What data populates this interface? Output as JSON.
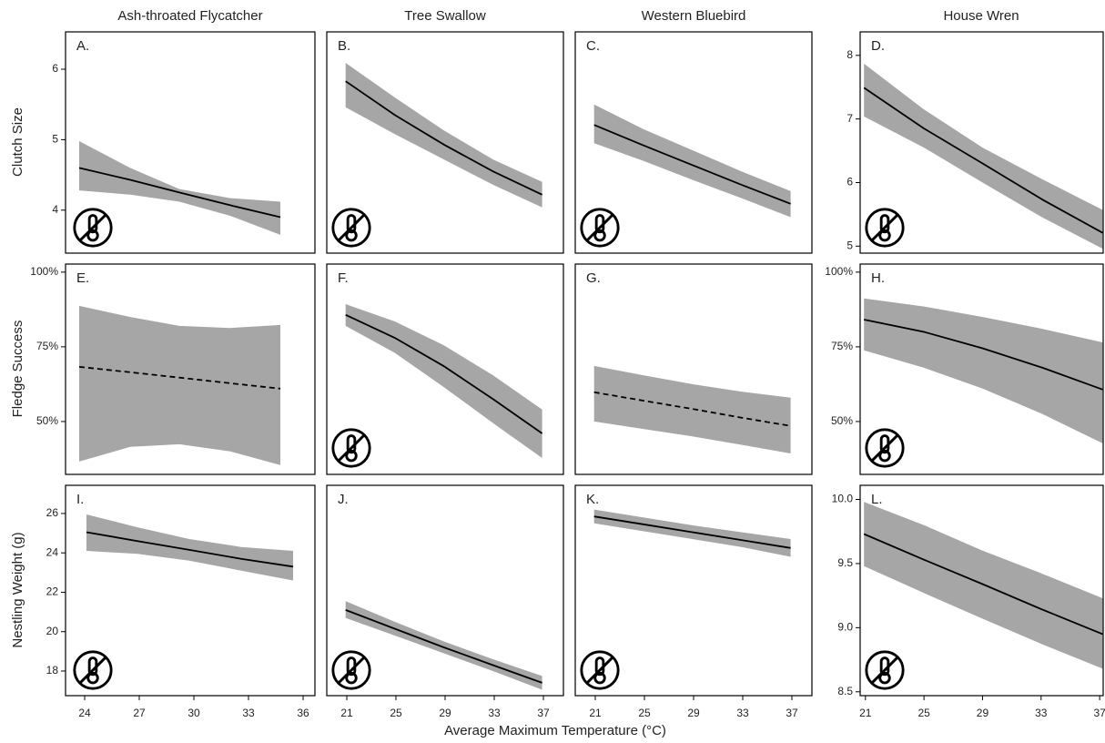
{
  "column_titles": [
    "Ash-throated Flycatcher",
    "Tree Swallow",
    "Western Bluebird",
    "House Wren"
  ],
  "row_labels": [
    "Clutch Size",
    "Fledge Success",
    "Nestling Weight (g)"
  ],
  "xlabel": "Average Maximum Temperature (°C)",
  "chart_data": [
    {
      "type": "line",
      "label": "A.",
      "color": "#000000",
      "band_color": "#a6a6a6",
      "dashed": false,
      "x": [
        23.7,
        26.5,
        29.2,
        32,
        34.75
      ],
      "values": [
        4.6,
        4.43,
        4.25,
        4.07,
        3.9
      ],
      "upper": [
        4.98,
        4.6,
        4.3,
        4.17,
        4.12
      ],
      "lower": [
        4.28,
        4.22,
        4.12,
        3.92,
        3.65
      ],
      "xlim": [
        22.95,
        36.65
      ],
      "ylim": [
        3.39,
        6.53
      ],
      "yticks": [
        4,
        5,
        6
      ]
    },
    {
      "type": "line",
      "label": "B.",
      "color": "#000000",
      "band_color": "#a6a6a6",
      "dashed": false,
      "x": [
        20.9,
        24.9,
        28.9,
        32.9,
        36.9
      ],
      "values": [
        5.83,
        5.35,
        4.93,
        4.55,
        4.22
      ],
      "upper": [
        6.09,
        5.6,
        5.13,
        4.72,
        4.4
      ],
      "lower": [
        5.46,
        5.08,
        4.72,
        4.36,
        4.04
      ],
      "xlim": [
        19.37,
        38.63
      ],
      "ylim": [
        3.39,
        6.53
      ]
    },
    {
      "type": "line",
      "label": "C.",
      "color": "#000000",
      "band_color": "#a6a6a6",
      "dashed": false,
      "x": [
        20.9,
        24.9,
        28.9,
        32.9,
        36.9
      ],
      "values": [
        5.21,
        4.92,
        4.64,
        4.36,
        4.09
      ],
      "upper": [
        5.5,
        5.15,
        4.85,
        4.55,
        4.27
      ],
      "lower": [
        4.95,
        4.7,
        4.43,
        4.17,
        3.9
      ],
      "xlim": [
        19.37,
        38.63
      ],
      "ylim": [
        3.39,
        6.53
      ]
    },
    {
      "type": "line",
      "label": "D.",
      "color": "#000000",
      "band_color": "#a6a6a6",
      "dashed": false,
      "x": [
        20.9,
        25,
        29,
        33.1,
        37.2
      ],
      "values": [
        7.49,
        6.85,
        6.3,
        5.73,
        5.21
      ],
      "upper": [
        7.87,
        7.15,
        6.55,
        6.05,
        5.57
      ],
      "lower": [
        7.04,
        6.55,
        6.0,
        5.45,
        4.96
      ],
      "xlim": [
        20.64,
        37.24
      ],
      "ylim": [
        4.89,
        8.37
      ],
      "yticks": [
        5,
        6,
        7,
        8
      ]
    },
    {
      "type": "line",
      "label": "E.",
      "color": "#000000",
      "band_color": "#a6a6a6",
      "dashed": true,
      "x": [
        23.7,
        26.5,
        29.2,
        32,
        34.75
      ],
      "values": [
        68.3,
        66.5,
        64.7,
        62.8,
        61
      ],
      "upper": [
        88.7,
        85,
        82,
        81.3,
        82.3
      ],
      "lower": [
        36.6,
        41.5,
        42.4,
        40,
        35.4
      ],
      "xlim": [
        22.95,
        36.65
      ],
      "ylim": [
        32.3,
        102.7
      ],
      "yticks": [
        {
          "value": 50,
          "label": "50%"
        },
        {
          "value": 75,
          "label": "75%"
        },
        {
          "value": 100,
          "label": "100%"
        }
      ]
    },
    {
      "type": "line",
      "label": "F.",
      "color": "#000000",
      "band_color": "#a6a6a6",
      "dashed": false,
      "x": [
        20.9,
        24.9,
        28.9,
        32.9,
        36.9
      ],
      "values": [
        85.7,
        78,
        68.5,
        57.5,
        46
      ],
      "upper": [
        89.3,
        83.5,
        75.5,
        65.5,
        54
      ],
      "lower": [
        82,
        73,
        61.5,
        49.5,
        37.8
      ],
      "xlim": [
        19.37,
        38.63
      ],
      "ylim": [
        32.3,
        102.7
      ]
    },
    {
      "type": "line",
      "label": "G.",
      "color": "#000000",
      "band_color": "#a6a6a6",
      "dashed": true,
      "x": [
        20.9,
        24.9,
        28.9,
        32.9,
        36.9
      ],
      "values": [
        59.8,
        57,
        54.2,
        51.3,
        48.5
      ],
      "upper": [
        68.6,
        65.5,
        62.5,
        60,
        58
      ],
      "lower": [
        50,
        47.5,
        45,
        42.2,
        39.3
      ],
      "xlim": [
        19.37,
        38.63
      ],
      "ylim": [
        32.3,
        102.7
      ]
    },
    {
      "type": "line",
      "label": "H.",
      "color": "#000000",
      "band_color": "#a6a6a6",
      "dashed": false,
      "x": [
        20.9,
        25,
        29,
        33.1,
        37.2
      ],
      "values": [
        84.1,
        80,
        74.5,
        68,
        60.7
      ],
      "upper": [
        91.2,
        88.5,
        85,
        81,
        76.5
      ],
      "lower": [
        73.8,
        68,
        61,
        52.5,
        42.7
      ],
      "xlim": [
        20.64,
        37.24
      ],
      "ylim": [
        32.3,
        102.7
      ],
      "yticks": [
        {
          "value": 50,
          "label": "50%"
        },
        {
          "value": 75,
          "label": "75%"
        },
        {
          "value": 100,
          "label": "100%"
        }
      ]
    },
    {
      "type": "line",
      "label": "I.",
      "color": "#000000",
      "band_color": "#a6a6a6",
      "dashed": false,
      "x": [
        24.1,
        26.9,
        29.75,
        32.6,
        35.45
      ],
      "values": [
        25.05,
        24.6,
        24.15,
        23.7,
        23.3
      ],
      "upper": [
        25.95,
        25.3,
        24.7,
        24.3,
        24.1
      ],
      "lower": [
        24.1,
        23.95,
        23.6,
        23.1,
        22.6
      ],
      "xlim": [
        22.95,
        36.65
      ],
      "ylim": [
        16.75,
        27.43
      ],
      "yticks": [
        18,
        20,
        22,
        24,
        26
      ],
      "xticks": [
        24,
        27,
        30,
        33,
        36
      ]
    },
    {
      "type": "line",
      "label": "J.",
      "color": "#000000",
      "band_color": "#a6a6a6",
      "dashed": false,
      "x": [
        20.9,
        24.9,
        28.9,
        32.9,
        36.9
      ],
      "values": [
        21.1,
        20.15,
        19.2,
        18.3,
        17.4
      ],
      "upper": [
        21.55,
        20.5,
        19.5,
        18.6,
        17.75
      ],
      "lower": [
        20.7,
        19.8,
        18.9,
        18.0,
        17.05
      ],
      "xlim": [
        19.37,
        38.63
      ],
      "ylim": [
        16.75,
        27.43
      ],
      "xticks": [
        21,
        25,
        29,
        33,
        37
      ]
    },
    {
      "type": "line",
      "label": "K.",
      "color": "#000000",
      "band_color": "#a6a6a6",
      "dashed": false,
      "x": [
        20.9,
        24.9,
        28.9,
        32.9,
        36.9
      ],
      "values": [
        25.85,
        25.45,
        25.05,
        24.65,
        24.25
      ],
      "upper": [
        26.2,
        25.8,
        25.4,
        25.05,
        24.7
      ],
      "lower": [
        25.5,
        25.1,
        24.7,
        24.3,
        23.8
      ],
      "xlim": [
        19.37,
        38.63
      ],
      "ylim": [
        16.75,
        27.43
      ],
      "xticks": [
        21,
        25,
        29,
        33,
        37
      ]
    },
    {
      "type": "line",
      "label": "L.",
      "color": "#000000",
      "band_color": "#a6a6a6",
      "dashed": false,
      "x": [
        20.9,
        25,
        29,
        33.1,
        37.2
      ],
      "values": [
        9.73,
        9.53,
        9.34,
        9.14,
        8.95
      ],
      "upper": [
        9.98,
        9.8,
        9.6,
        9.42,
        9.23
      ],
      "lower": [
        9.48,
        9.27,
        9.07,
        8.87,
        8.68
      ],
      "xlim": [
        20.64,
        37.24
      ],
      "ylim": [
        8.47,
        10.11
      ],
      "yticks": [
        8.5,
        {
          "value": 9,
          "label": "9.0"
        },
        9.5,
        {
          "value": 10,
          "label": "10.0"
        }
      ],
      "xticks": [
        21,
        25,
        29,
        33,
        37
      ]
    }
  ]
}
